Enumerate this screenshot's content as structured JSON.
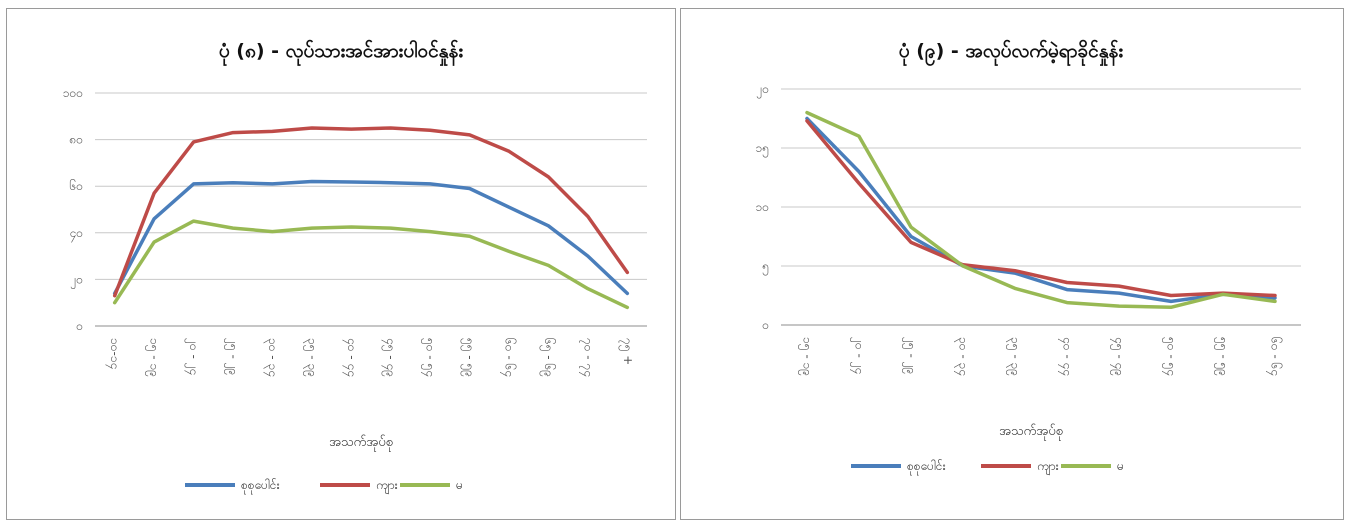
{
  "colors": {
    "total": "#4a7ebb",
    "male": "#be4b48",
    "female": "#98b954",
    "grid": "#c8c8c8"
  },
  "chart_data": [
    {
      "type": "line",
      "title": "ပုံ (၈) - လုပ်သားအင်အားပါဝင်နှုန်း",
      "xlabel": "အသက်အုပ်စု",
      "ylabel": "",
      "ylim": [
        0,
        100
      ],
      "yticks": [
        {
          "value": 0,
          "label": "၀"
        },
        {
          "value": 20,
          "label": "၂၀"
        },
        {
          "value": 40,
          "label": "၄၀"
        },
        {
          "value": 60,
          "label": "၆၀"
        },
        {
          "value": 80,
          "label": "၈၀"
        },
        {
          "value": 100,
          "label": "၁၀၀"
        }
      ],
      "grid": true,
      "legend": "bottom",
      "categories": [
        "၁၀-၁၄",
        "၁၅ - ၁၉",
        "၂၀ - ၂၄",
        "၂၅ - ၂၉",
        "၃၀ - ၃၄",
        "၃၅ - ၃၉",
        "၄၀ - ၄၄",
        "၄၅ - ၄၉",
        "၅၀ - ၅၄",
        "၅၅ - ၅၉",
        "၆၀ - ၆၄",
        "၆၅ - ၆၉",
        "၇၀ - ၇၄",
        "၇၅ +"
      ],
      "series": [
        {
          "name": "စုစုပေါင်း",
          "color": "#4a7ebb",
          "values": [
            14,
            46,
            61,
            61.5,
            61,
            62,
            61.8,
            61.5,
            61,
            59,
            51,
            43,
            30,
            14
          ]
        },
        {
          "name": "ကျား",
          "color": "#be4b48",
          "values": [
            13,
            57,
            79,
            83,
            83.5,
            85,
            84.5,
            85,
            84,
            82,
            75,
            64,
            47,
            23
          ]
        },
        {
          "name": "မ",
          "color": "#98b954",
          "values": [
            10,
            36,
            45,
            42,
            40.5,
            42,
            42.5,
            42,
            40.5,
            38.5,
            32,
            26,
            16,
            8
          ]
        }
      ]
    },
    {
      "type": "line",
      "title": "ပုံ (၉) - အလုပ်လက်မဲ့ရာခိုင်နှုန်း",
      "xlabel": "အသက်အုပ်စု",
      "ylabel": "",
      "ylim": [
        0,
        20
      ],
      "yticks": [
        {
          "value": 0,
          "label": "၀"
        },
        {
          "value": 5,
          "label": "၅"
        },
        {
          "value": 10,
          "label": "၁၀"
        },
        {
          "value": 15,
          "label": "၁၅"
        },
        {
          "value": 20,
          "label": "၂၀"
        }
      ],
      "grid": true,
      "legend": "bottom",
      "categories": [
        "၁၅ - ၁၉",
        "၂၀ - ၂၄",
        "၂၅ - ၂၉",
        "၃၀ - ၃၄",
        "၃၅ - ၃၉",
        "၄၀ - ၄၄",
        "၄၅ - ၄၉",
        "၅၀ - ၅၄",
        "၅၅ - ၅၉",
        "၆၀ - ၆၄"
      ],
      "series": [
        {
          "name": "စုစုပေါင်း",
          "color": "#4a7ebb",
          "values": [
            17.5,
            13,
            7.5,
            5,
            4.4,
            3,
            2.7,
            2,
            2.6,
            2.3
          ]
        },
        {
          "name": "ကျား",
          "color": "#be4b48",
          "values": [
            17.3,
            12,
            7,
            5.1,
            4.6,
            3.6,
            3.3,
            2.5,
            2.7,
            2.5
          ]
        },
        {
          "name": "မ",
          "color": "#98b954",
          "values": [
            18,
            16,
            8.3,
            5,
            3.1,
            1.9,
            1.6,
            1.5,
            2.6,
            2
          ]
        }
      ]
    }
  ]
}
